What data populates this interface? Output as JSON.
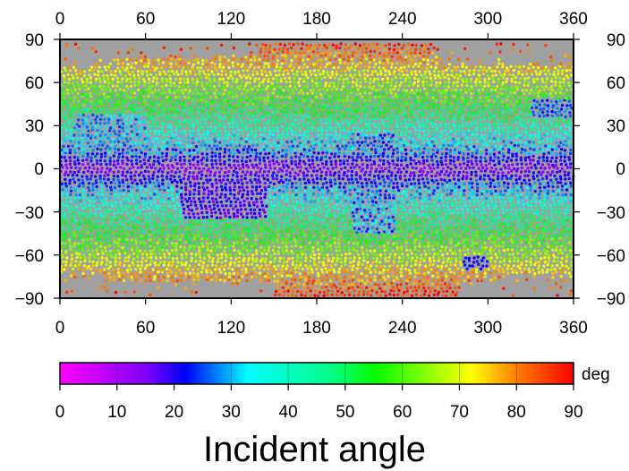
{
  "chart_data": {
    "type": "scatter",
    "title": "Incident angle",
    "xlabel": "",
    "ylabel": "",
    "xlim": [
      0,
      360
    ],
    "ylim": [
      -90,
      90
    ],
    "x_ticks": [
      "0",
      "60",
      "120",
      "180",
      "240",
      "300",
      "360"
    ],
    "y_ticks": [
      "90",
      "60",
      "30",
      "0",
      "−30",
      "−60",
      "−90"
    ],
    "background_color": "#a0a0a0",
    "grid": false,
    "colorbar": {
      "unit": "deg",
      "range": [
        0,
        90
      ],
      "tick_labels": [
        "0",
        "10",
        "20",
        "30",
        "40",
        "50",
        "60",
        "70",
        "80",
        "90"
      ],
      "colors": [
        {
          "value": 0,
          "color": "#ff00ff"
        },
        {
          "value": 15,
          "color": "#8000ff"
        },
        {
          "value": 22,
          "color": "#0000ff"
        },
        {
          "value": 33,
          "color": "#00ffff"
        },
        {
          "value": 48,
          "color": "#00ff80"
        },
        {
          "value": 55,
          "color": "#00ff00"
        },
        {
          "value": 72,
          "color": "#ffff00"
        },
        {
          "value": 80,
          "color": "#ff8000"
        },
        {
          "value": 90,
          "color": "#ff0000"
        }
      ]
    },
    "description_of_field": "Incident angle is lowest (0–20 deg) along the equatorial band (about −15 to 15 latitude) and rises toward high latitudes (60–90 deg near ±60 to ±90); a low-angle blue patch appears near 90–140 lon / 0 to −30 lat and a blue spot near 290 lon / −65 lat; areas with no data above about ±75 latitude are gray."
  }
}
